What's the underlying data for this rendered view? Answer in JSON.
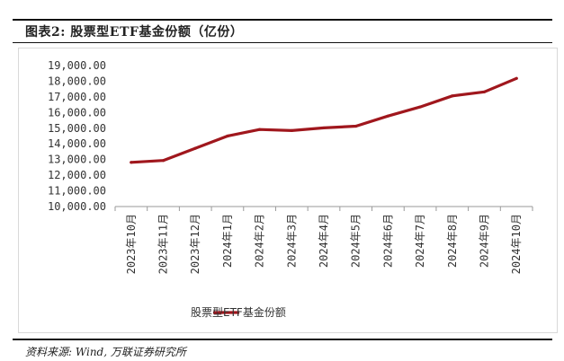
{
  "figure": {
    "title_prefix": "图表2:",
    "title_text": "股票型ETF基金份额（亿份）"
  },
  "source": "资料来源: Wind, 万联证券研究所",
  "colors": {
    "line": "#a0171d",
    "grid": "#d9d9d9",
    "rule": "#111111"
  },
  "chart_data": {
    "type": "line",
    "title": "股票型ETF基金份额（亿份）",
    "xlabel": "",
    "ylabel": "",
    "categories": [
      "2023年10月",
      "2023年11月",
      "2023年12月",
      "2024年1月",
      "2024年2月",
      "2024年3月",
      "2024年4月",
      "2024年5月",
      "2024年6月",
      "2024年7月",
      "2024年8月",
      "2024年9月",
      "2024年10月"
    ],
    "series": [
      {
        "name": "股票型ETF基金份额",
        "values": [
          12820,
          12940,
          13720,
          14500,
          14920,
          14850,
          15020,
          15130,
          15780,
          16360,
          17060,
          17320,
          18180
        ]
      }
    ],
    "ylim": [
      10000,
      19000
    ],
    "yticks": [
      10000,
      11000,
      12000,
      13000,
      14000,
      15000,
      16000,
      17000,
      18000,
      19000
    ],
    "ytick_labels": [
      "10,000.00",
      "11,000.00",
      "12,000.00",
      "13,000.00",
      "14,000.00",
      "15,000.00",
      "16,000.00",
      "17,000.00",
      "18,000.00",
      "19,000.00"
    ],
    "grid": false,
    "legend_position": "bottom"
  }
}
